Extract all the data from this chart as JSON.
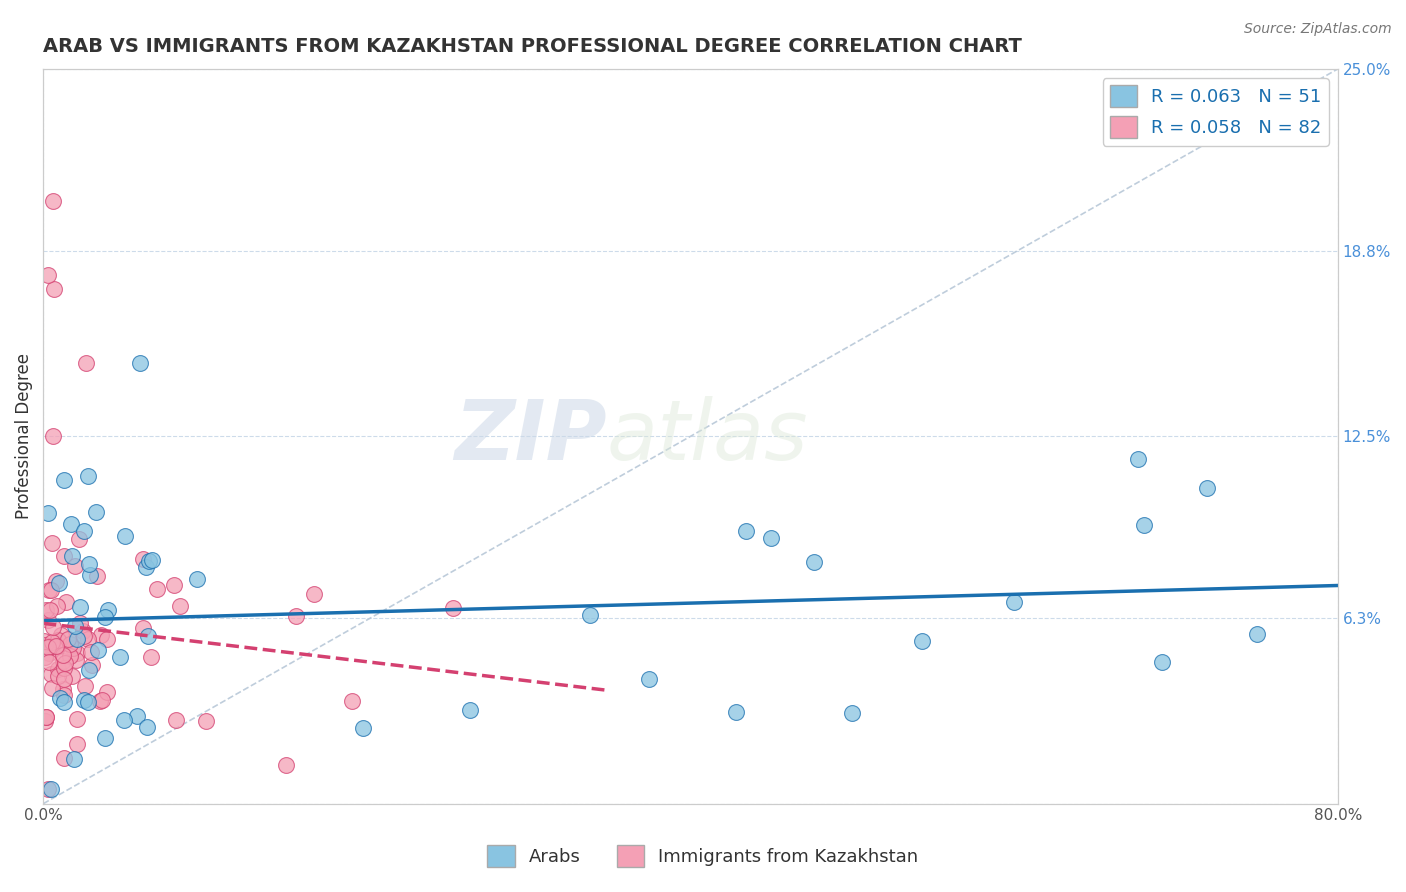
{
  "title": "ARAB VS IMMIGRANTS FROM KAZAKHSTAN PROFESSIONAL DEGREE CORRELATION CHART",
  "source": "Source: ZipAtlas.com",
  "ylabel": "Professional Degree",
  "series": [
    {
      "name": "Arabs",
      "R": 0.063,
      "N": 51,
      "color": "#89c4e1",
      "trend_color": "#1a6faf"
    },
    {
      "name": "Immigrants from Kazakhstan",
      "R": 0.058,
      "N": 82,
      "color": "#f4a0b5",
      "trend_color": "#d44070"
    }
  ],
  "xlim": [
    0,
    80
  ],
  "ylim": [
    0,
    25
  ],
  "right_yticklabels": [
    "",
    "6.3%",
    "12.5%",
    "18.8%",
    "25.0%"
  ],
  "right_ytick_vals": [
    0,
    6.3,
    12.5,
    18.8,
    25.0
  ],
  "xticklabels": [
    "0.0%",
    "80.0%"
  ],
  "xtick_vals": [
    0,
    80
  ],
  "watermark_zip": "ZIP",
  "watermark_atlas": "atlas",
  "background_color": "#ffffff",
  "grid_color": "#c8d8e8",
  "title_fontsize": 14,
  "axis_label_fontsize": 12,
  "tick_fontsize": 11,
  "legend_fontsize": 13
}
